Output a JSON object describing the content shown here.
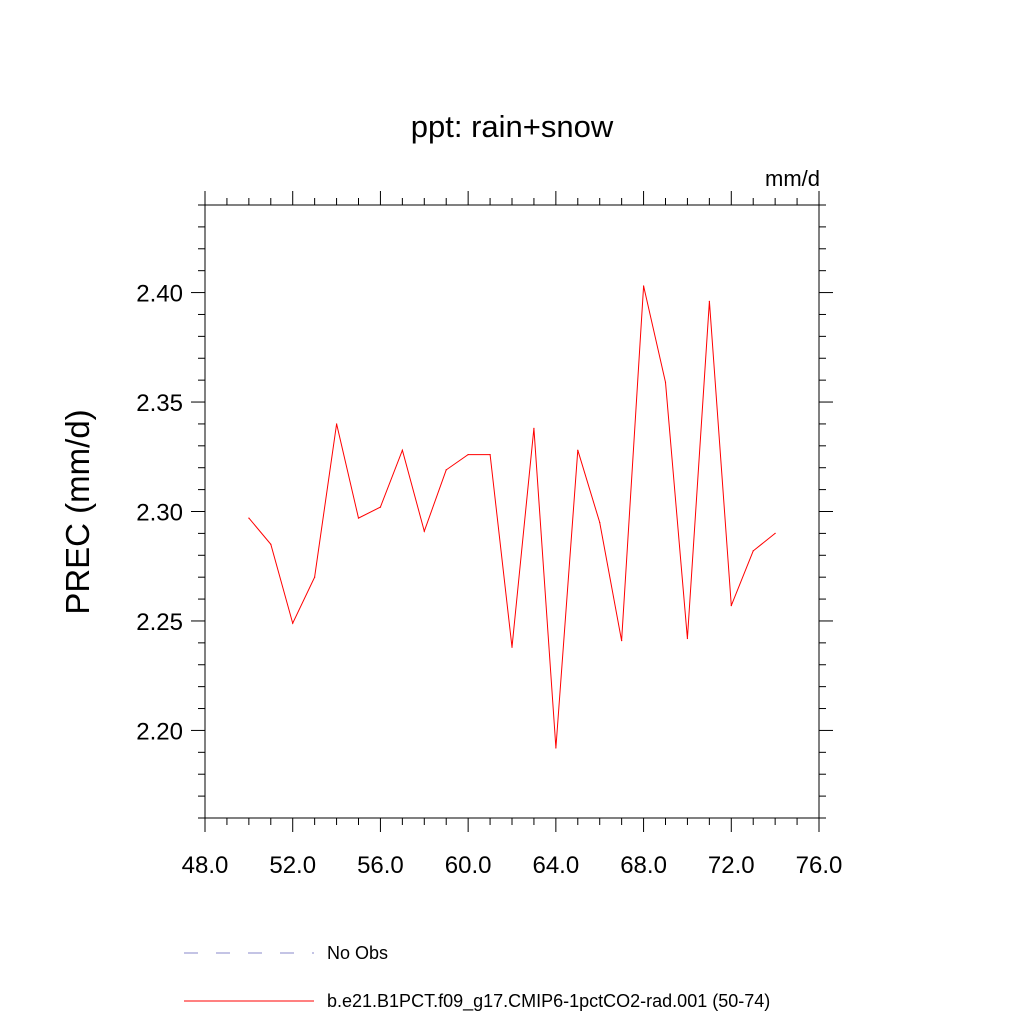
{
  "chart_data": {
    "type": "line",
    "title": "ppt: rain+snow",
    "units": "mm/d",
    "ylabel": "PREC  (mm/d)",
    "xlabel": "",
    "xlim": [
      48.0,
      76.0
    ],
    "ylim": [
      2.16,
      2.44
    ],
    "xticks": [
      "48.0",
      "52.0",
      "56.0",
      "60.0",
      "64.0",
      "68.0",
      "72.0",
      "76.0"
    ],
    "yticks": [
      "2.20",
      "2.25",
      "2.30",
      "2.35",
      "2.40"
    ],
    "grid": false,
    "legend_position": "bottom",
    "legend": [
      {
        "label": "No Obs",
        "style": "dashed",
        "color": "#8a8acb"
      },
      {
        "label": "b.e21.B1PCT.f09_g17.CMIP6-1pctCO2-rad.001 (50-74)",
        "style": "solid",
        "color": "#ff0000"
      }
    ],
    "series": [
      {
        "name": "b.e21.B1PCT.f09_g17.CMIP6-1pctCO2-rad.001 (50-74)",
        "color": "#ff0000",
        "x": [
          50,
          51,
          52,
          53,
          54,
          55,
          56,
          57,
          58,
          59,
          60,
          61,
          62,
          63,
          64,
          65,
          66,
          67,
          68,
          69,
          70,
          71,
          72,
          73,
          74
        ],
        "y": [
          2.297,
          2.285,
          2.249,
          2.27,
          2.34,
          2.297,
          2.302,
          2.328,
          2.291,
          2.319,
          2.326,
          2.326,
          2.238,
          2.338,
          2.192,
          2.328,
          2.295,
          2.241,
          2.403,
          2.359,
          2.242,
          2.396,
          2.257,
          2.282,
          2.29
        ]
      }
    ]
  }
}
